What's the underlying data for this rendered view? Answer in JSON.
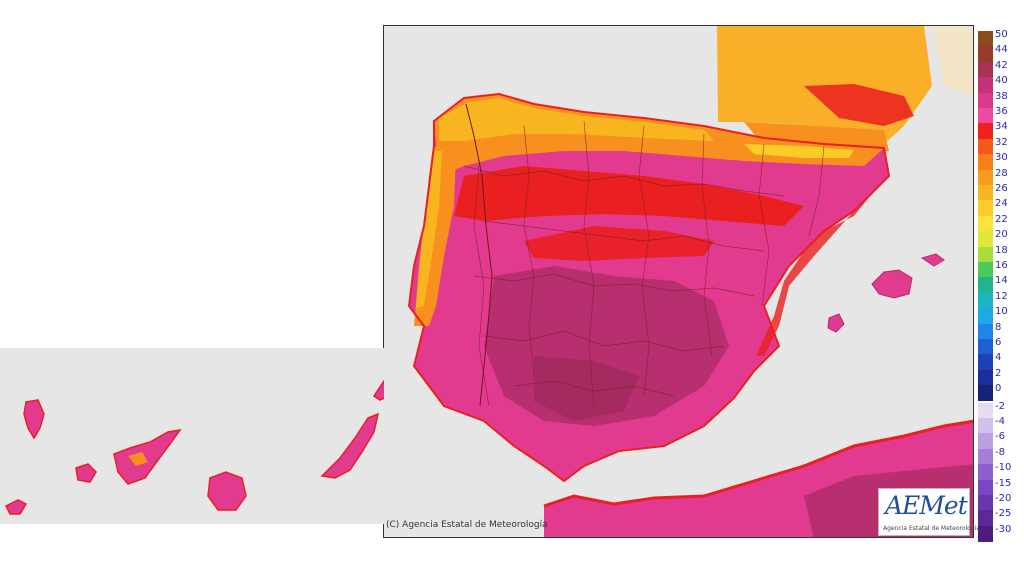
{
  "map": {
    "copyright": "(C) Agencia Estatal de Meteorología",
    "logo": {
      "name": "AEMet",
      "subtitle": "Agencia Estatal de Meteorología"
    },
    "colors": {
      "background": "#e6e6e6",
      "very_hot_dark": "#b02f6e",
      "hot_magenta": "#e23a8e",
      "red": "#ea1f1f",
      "orange": "#f7901e",
      "yellow_orange": "#f9b520",
      "border_lines": "#7a2020"
    }
  },
  "legend": {
    "unit_note": "temperature scale",
    "entries": [
      {
        "label": "50",
        "color": "#8a4b1f"
      },
      {
        "label": "44",
        "color": "#9a3a2a"
      },
      {
        "label": "42",
        "color": "#a83258"
      },
      {
        "label": "40",
        "color": "#c23477"
      },
      {
        "label": "38",
        "color": "#d93a8c"
      },
      {
        "label": "36",
        "color": "#ee4aa2"
      },
      {
        "label": "34",
        "color": "#ef2020"
      },
      {
        "label": "32",
        "color": "#f55a1a"
      },
      {
        "label": "30",
        "color": "#f77f1c"
      },
      {
        "label": "28",
        "color": "#f89c1e"
      },
      {
        "label": "26",
        "color": "#f9b521"
      },
      {
        "label": "24",
        "color": "#fbcc27"
      },
      {
        "label": "22",
        "color": "#fde23a"
      },
      {
        "label": "20",
        "color": "#dfe838"
      },
      {
        "label": "18",
        "color": "#a6dc3c"
      },
      {
        "label": "16",
        "color": "#4fc85a"
      },
      {
        "label": "14",
        "color": "#22b48f"
      },
      {
        "label": "12",
        "color": "#1eb5c2"
      },
      {
        "label": "10",
        "color": "#1ea9e6"
      },
      {
        "label": "8",
        "color": "#1d86e8"
      },
      {
        "label": "6",
        "color": "#1e5fd2"
      },
      {
        "label": "4",
        "color": "#1e42b6"
      },
      {
        "label": "2",
        "color": "#1b2f99"
      },
      {
        "label": "0",
        "color": "#14227a"
      },
      {
        "label": "-2",
        "color": "#e6dcf2"
      },
      {
        "label": "-4",
        "color": "#d2bfea"
      },
      {
        "label": "-6",
        "color": "#bda0e2"
      },
      {
        "label": "-8",
        "color": "#a37fd8"
      },
      {
        "label": "-10",
        "color": "#8c5fcf"
      },
      {
        "label": "-15",
        "color": "#7a47c3"
      },
      {
        "label": "-20",
        "color": "#6b36ad"
      },
      {
        "label": "-25",
        "color": "#5c2a96"
      },
      {
        "label": "-30",
        "color": "#4a1f7c"
      }
    ]
  }
}
